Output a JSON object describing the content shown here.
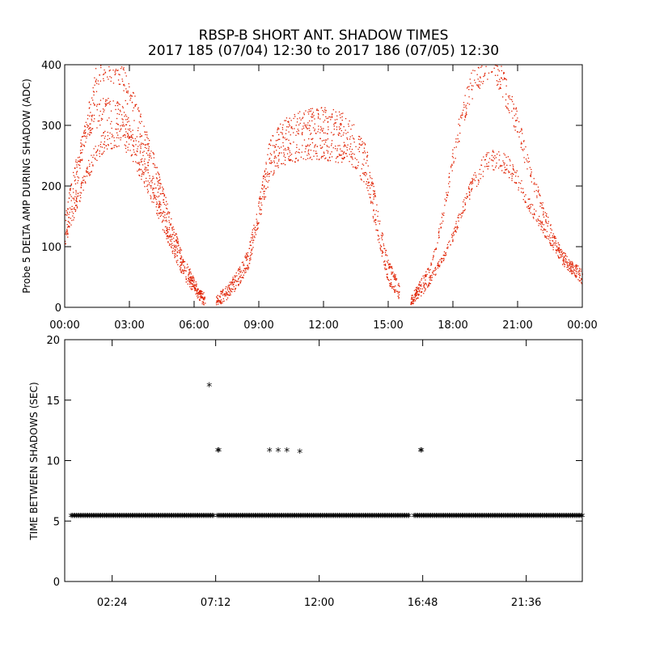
{
  "title": {
    "line1": "RBSP-B SHORT ANT. SHADOW TIMES",
    "line2": "2017 185 (07/04) 12:30 to 2017 186 (07/05) 12:30"
  },
  "chart_data": [
    {
      "type": "scatter",
      "ylabel": "Probe 5 DELTA AMP DURING SHADOW (ADC)",
      "xlabel": "",
      "xlim_hours": [
        0,
        24
      ],
      "ylim": [
        0,
        400
      ],
      "x_ticks": [
        "00:00",
        "03:00",
        "06:00",
        "09:00",
        "12:00",
        "15:00",
        "18:00",
        "21:00",
        "00:00"
      ],
      "y_ticks": [
        "0",
        "100",
        "200",
        "300",
        "400"
      ],
      "grid": false,
      "point_color": "#e02000",
      "series": [
        {
          "band": "upper",
          "points": [
            [
              0.0,
              120
            ],
            [
              0.5,
              200
            ],
            [
              1.0,
              300
            ],
            [
              1.5,
              390
            ],
            [
              2.0,
              405
            ],
            [
              2.5,
              390
            ],
            [
              3.0,
              350
            ],
            [
              3.5,
              300
            ],
            [
              4.0,
              250
            ],
            [
              4.5,
              190
            ],
            [
              5.0,
              130
            ],
            [
              5.5,
              80
            ],
            [
              6.0,
              40
            ],
            [
              6.5,
              15
            ]
          ]
        },
        {
          "band": "middle",
          "points": [
            [
              0.0,
              150
            ],
            [
              0.5,
              230
            ],
            [
              1.0,
              300
            ],
            [
              1.5,
              320
            ],
            [
              2.0,
              325
            ],
            [
              2.5,
              320
            ],
            [
              3.0,
              300
            ],
            [
              3.5,
              260
            ],
            [
              4.0,
              210
            ],
            [
              4.5,
              160
            ],
            [
              5.0,
              110
            ],
            [
              5.5,
              70
            ],
            [
              6.0,
              35
            ],
            [
              6.5,
              12
            ]
          ]
        },
        {
          "band": "lower",
          "points": [
            [
              0.0,
              110
            ],
            [
              0.5,
              170
            ],
            [
              1.0,
              220
            ],
            [
              1.5,
              260
            ],
            [
              2.0,
              280
            ],
            [
              2.5,
              285
            ],
            [
              3.0,
              265
            ],
            [
              3.5,
              230
            ],
            [
              4.0,
              190
            ],
            [
              4.5,
              140
            ],
            [
              5.0,
              95
            ],
            [
              5.5,
              55
            ],
            [
              6.0,
              28
            ],
            [
              6.5,
              8
            ]
          ]
        },
        {
          "band": "orbit-2-upper",
          "points": [
            [
              7.0,
              15
            ],
            [
              7.5,
              30
            ],
            [
              8.0,
              55
            ],
            [
              8.5,
              90
            ],
            [
              9.0,
              170
            ],
            [
              9.5,
              260
            ],
            [
              10.0,
              290
            ],
            [
              11.0,
              305
            ],
            [
              12.0,
              310
            ],
            [
              13.0,
              300
            ],
            [
              13.5,
              280
            ],
            [
              14.0,
              250
            ],
            [
              14.5,
              150
            ],
            [
              15.0,
              70
            ],
            [
              15.5,
              40
            ]
          ]
        },
        {
          "band": "orbit-2-lower",
          "points": [
            [
              7.0,
              8
            ],
            [
              7.5,
              20
            ],
            [
              8.0,
              40
            ],
            [
              8.5,
              70
            ],
            [
              9.0,
              150
            ],
            [
              9.5,
              230
            ],
            [
              10.0,
              250
            ],
            [
              11.0,
              260
            ],
            [
              12.0,
              262
            ],
            [
              13.0,
              255
            ],
            [
              13.5,
              240
            ],
            [
              14.0,
              210
            ],
            [
              14.5,
              120
            ],
            [
              15.0,
              45
            ],
            [
              15.5,
              20
            ]
          ]
        },
        {
          "band": "orbit-3-upper",
          "points": [
            [
              16.0,
              10
            ],
            [
              16.5,
              40
            ],
            [
              17.0,
              70
            ],
            [
              17.5,
              150
            ],
            [
              18.0,
              250
            ],
            [
              18.5,
              330
            ],
            [
              19.0,
              380
            ],
            [
              19.5,
              400
            ],
            [
              20.0,
              390
            ],
            [
              20.5,
              350
            ],
            [
              21.0,
              300
            ],
            [
              21.5,
              230
            ],
            [
              22.0,
              180
            ],
            [
              22.5,
              130
            ],
            [
              23.0,
              90
            ],
            [
              24.0,
              55
            ]
          ]
        },
        {
          "band": "orbit-3-lower",
          "points": [
            [
              16.0,
              8
            ],
            [
              16.5,
              25
            ],
            [
              17.0,
              50
            ],
            [
              17.5,
              80
            ],
            [
              18.0,
              120
            ],
            [
              18.5,
              170
            ],
            [
              19.0,
              210
            ],
            [
              19.5,
              240
            ],
            [
              20.0,
              245
            ],
            [
              20.5,
              235
            ],
            [
              21.0,
              210
            ],
            [
              21.5,
              170
            ],
            [
              22.0,
              140
            ],
            [
              22.5,
              110
            ],
            [
              23.0,
              80
            ],
            [
              24.0,
              45
            ]
          ]
        }
      ]
    },
    {
      "type": "scatter",
      "ylabel": "TIME BETWEEN SHADOWS (SEC)",
      "xlabel": "",
      "xlim_hours": [
        0,
        24
      ],
      "ylim": [
        0,
        20
      ],
      "x_ticks": [
        "02:24",
        "07:12",
        "12:00",
        "16:48",
        "21:36"
      ],
      "y_ticks": [
        "0",
        "5",
        "10",
        "15",
        "20"
      ],
      "grid": false,
      "marker": "*",
      "point_color": "#000000",
      "baseline_value": 5.4,
      "baseline_gaps_hours": [
        [
          6.9,
          7.05
        ],
        [
          16.0,
          16.2
        ]
      ],
      "outliers": [
        [
          6.7,
          16.2
        ],
        [
          7.1,
          10.8
        ],
        [
          7.15,
          10.8
        ],
        [
          9.5,
          10.8
        ],
        [
          9.9,
          10.8
        ],
        [
          10.3,
          10.8
        ],
        [
          10.9,
          10.7
        ],
        [
          16.5,
          10.8
        ],
        [
          16.55,
          10.8
        ]
      ]
    }
  ]
}
